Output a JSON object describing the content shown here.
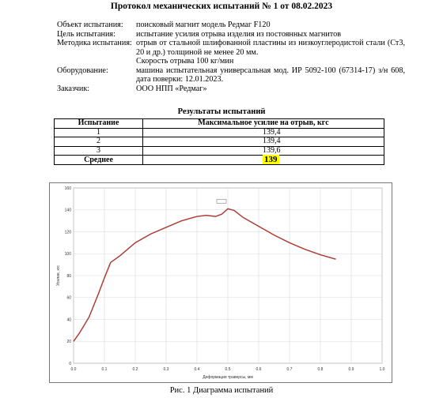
{
  "document": {
    "title": "Протокол механических испытаний № 1 от 08.02.2023",
    "info": [
      {
        "label": "Объект испытания:",
        "lines": [
          "поисковый магнит модель Редмаг F120"
        ]
      },
      {
        "label": "Цель испытания:",
        "lines": [
          "испытание усилия отрыва изделия из постоянных магнитов"
        ]
      },
      {
        "label": "Методика испытания:",
        "lines": [
          "отрыв от стальной шлифованной пластины из низкоуглеродистой стали (Ст3, 20 и др.) толщиной не менее 20 мм.",
          "Скорость отрыва 100 кг/мин"
        ]
      },
      {
        "label": "Оборудование:",
        "lines": [
          "машина испытательная универсальная мод. ИР 5092-100 (67314-17) з/н 608, дата поверки: 12.01.2023."
        ]
      },
      {
        "label": "Заказчик:",
        "lines": [
          "ООО НПП «Редмаг»"
        ]
      }
    ],
    "results_title": "Результаты испытаний",
    "table": {
      "headers": [
        "Испытание",
        "Максимальное усилие на отрыв, кгс"
      ],
      "rows": [
        {
          "test": "1",
          "value": "139,4"
        },
        {
          "test": "2",
          "value": "139,4"
        },
        {
          "test": "3",
          "value": "139,6"
        }
      ],
      "average_label": "Среднее",
      "average_value": "139"
    },
    "caption": "Рис. 1 Диаграмма испытаний"
  },
  "chart_data": {
    "type": "line",
    "title": "",
    "xlabel": "Деформация траверсы, мм",
    "ylabel": "Усилие, кгс",
    "xlim": [
      0,
      1.0
    ],
    "ylim": [
      0,
      160
    ],
    "x_ticks": [
      "0.0",
      "0.1",
      "0.2",
      "0.3",
      "0.4",
      "0.5",
      "0.6",
      "0.7",
      "0.8",
      "0.9",
      "1.0"
    ],
    "y_ticks": [
      "0",
      "20",
      "40",
      "60",
      "80",
      "100",
      "120",
      "140",
      "160"
    ],
    "grid": true,
    "series_color": "#cc2a1e",
    "series": [
      {
        "x": [
          0.0,
          0.02,
          0.05,
          0.08,
          0.1,
          0.12,
          0.15,
          0.2,
          0.25,
          0.3,
          0.35,
          0.4,
          0.43,
          0.46,
          0.48,
          0.5,
          0.52,
          0.55,
          0.6,
          0.65,
          0.7,
          0.75,
          0.8,
          0.85
        ],
        "y": [
          20,
          28,
          42,
          63,
          78,
          92,
          98,
          110,
          118,
          124,
          130,
          134,
          135,
          134,
          136,
          141,
          139.5,
          133,
          125,
          117,
          110,
          104,
          99,
          95
        ]
      }
    ]
  }
}
